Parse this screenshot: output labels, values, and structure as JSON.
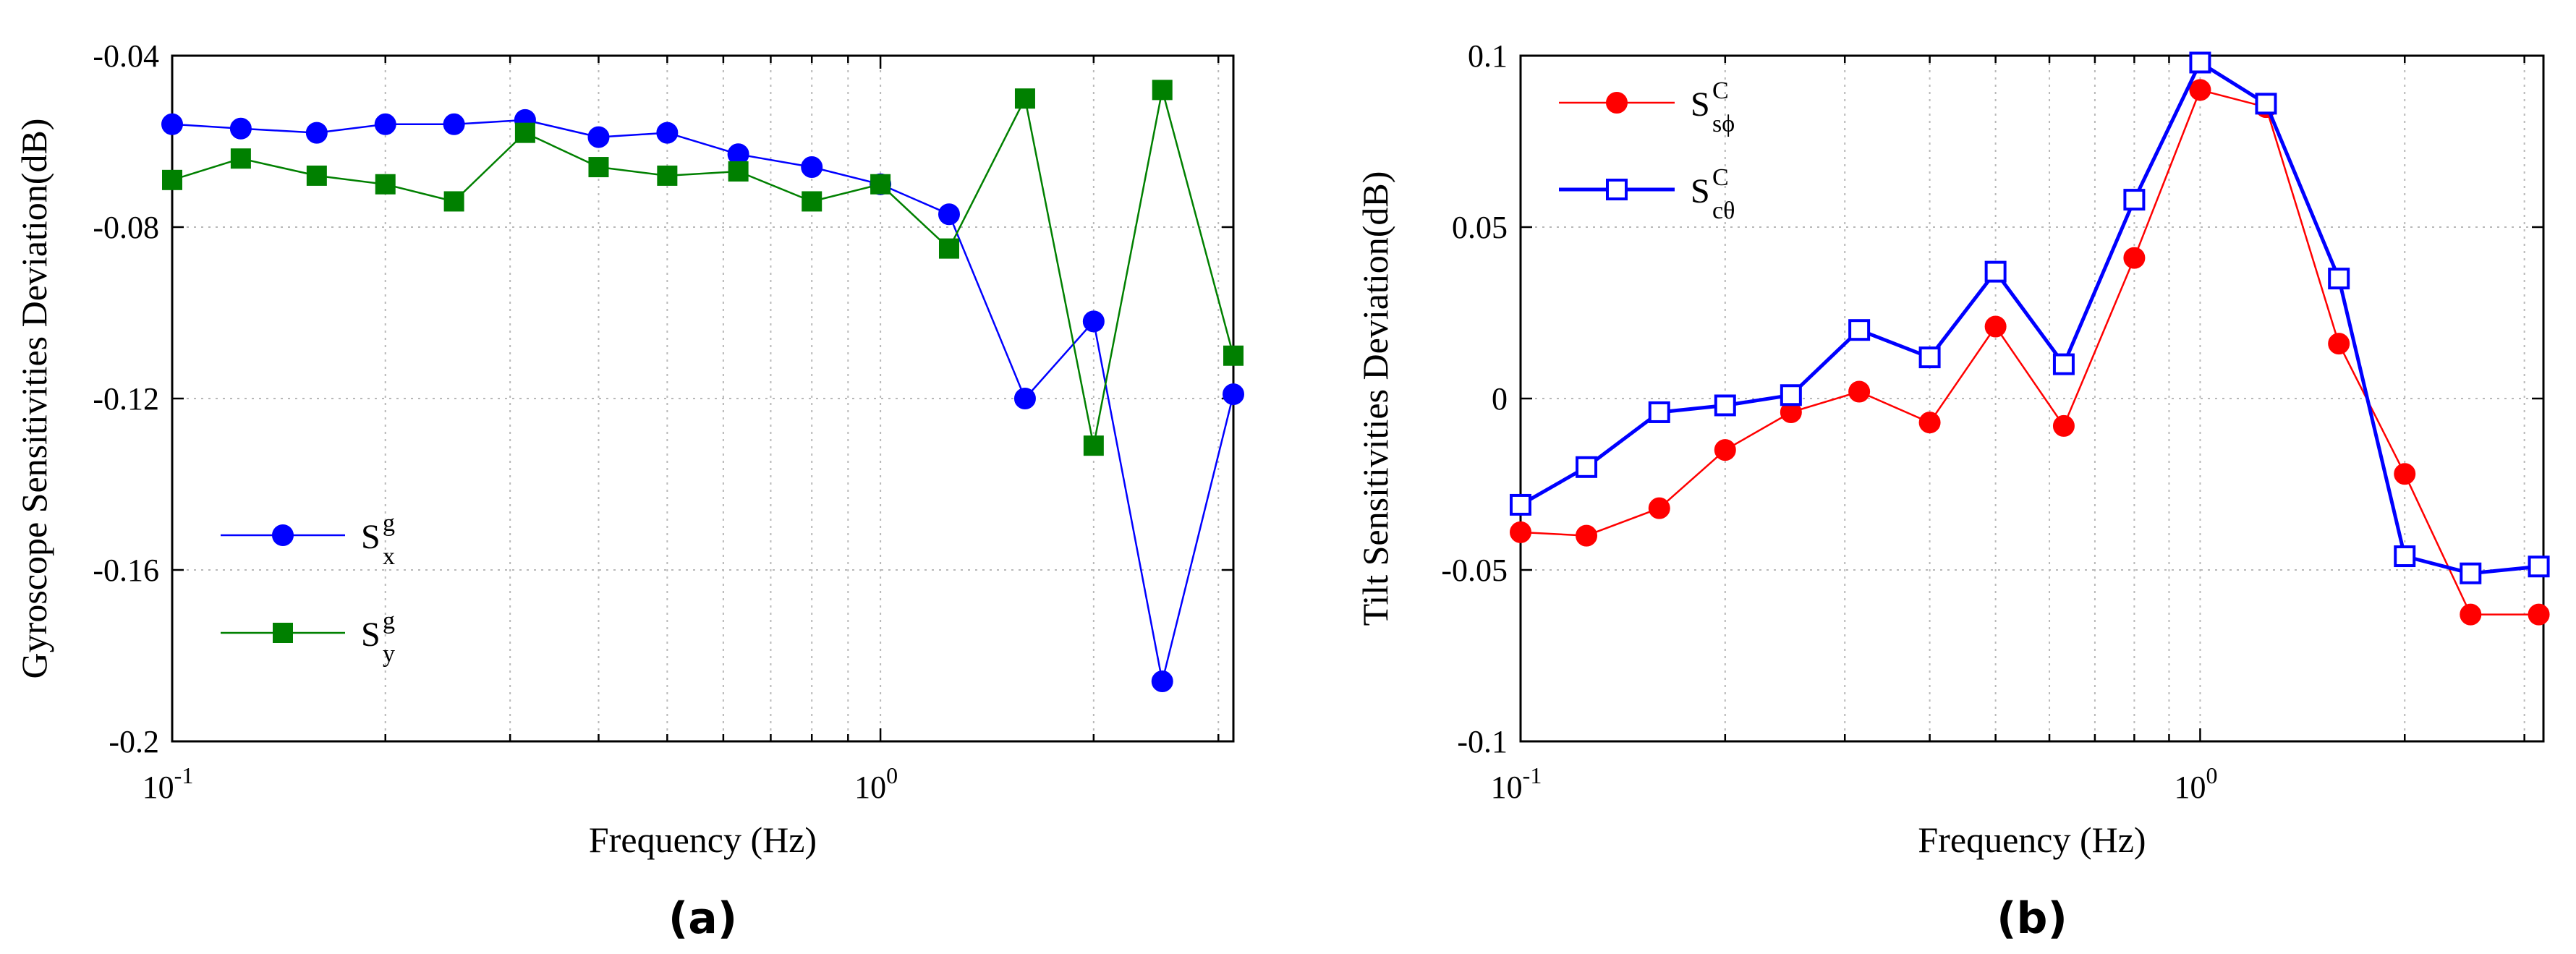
{
  "chart_data": [
    {
      "type": "line",
      "id": "a",
      "panel_label": "(a)",
      "xscale": "log",
      "xlim": [
        0.1,
        3.15
      ],
      "ylim": [
        -0.2,
        -0.04
      ],
      "xlabel": "Frequency (Hz)",
      "ylabel": "Gyroscope Sensitivities Deviation(dB)",
      "x_tick_labels": [
        {
          "value": 0.1,
          "base": "10",
          "exp": "-1"
        },
        {
          "value": 1,
          "base": "10",
          "exp": "0"
        }
      ],
      "y_ticks": [
        -0.2,
        -0.16,
        -0.12,
        -0.08,
        -0.04
      ],
      "y_tick_labels": [
        "-0.2",
        "-0.16",
        "-0.12",
        "-0.08",
        "-0.04"
      ],
      "grid": true,
      "legend_position": "bottom-left",
      "x": [
        0.1,
        0.125,
        0.16,
        0.2,
        0.25,
        0.315,
        0.4,
        0.5,
        0.63,
        0.8,
        1.0,
        1.25,
        1.6,
        2.0,
        2.5,
        3.15
      ],
      "series": [
        {
          "name": "S_x^g",
          "legend_main": "S",
          "legend_sup": "g",
          "legend_sub": "x",
          "color": "#0000ff",
          "marker": "filled-circle",
          "values": [
            -0.056,
            -0.057,
            -0.058,
            -0.056,
            -0.056,
            -0.055,
            -0.059,
            -0.058,
            -0.063,
            -0.066,
            -0.07,
            -0.077,
            -0.12,
            -0.102,
            -0.186,
            -0.119
          ]
        },
        {
          "name": "S_y^g",
          "legend_main": "S",
          "legend_sup": "g",
          "legend_sub": "y",
          "color": "#008000",
          "marker": "filled-square",
          "values": [
            -0.069,
            -0.064,
            -0.068,
            -0.07,
            -0.074,
            -0.058,
            -0.066,
            -0.068,
            -0.067,
            -0.074,
            -0.07,
            -0.085,
            -0.05,
            -0.131,
            -0.048,
            -0.11
          ]
        }
      ]
    },
    {
      "type": "line",
      "id": "b",
      "panel_label": "(b)",
      "xscale": "log",
      "xlim": [
        0.1,
        3.2
      ],
      "ylim": [
        -0.1,
        0.1
      ],
      "xlabel": "Frequency (Hz)",
      "ylabel": "Tilt Sensitivities Deviation(dB)",
      "x_tick_labels": [
        {
          "value": 0.1,
          "base": "10",
          "exp": "-1"
        },
        {
          "value": 1,
          "base": "10",
          "exp": "0"
        }
      ],
      "y_ticks": [
        -0.1,
        -0.05,
        0,
        0.05,
        0.1
      ],
      "y_tick_labels": [
        "-0.1",
        "-0.05",
        "0",
        "0.05",
        "0.1"
      ],
      "grid": true,
      "legend_position": "top-left",
      "x": [
        0.1,
        0.125,
        0.16,
        0.2,
        0.25,
        0.315,
        0.4,
        0.5,
        0.63,
        0.8,
        1.0,
        1.25,
        1.6,
        2.0,
        2.5,
        3.15
      ],
      "series": [
        {
          "name": "S_sφ^C",
          "legend_main": "S",
          "legend_sup": "C",
          "legend_sub": "sϕ",
          "color": "#ff0000",
          "marker": "filled-circle",
          "values": [
            -0.039,
            -0.04,
            -0.032,
            -0.015,
            -0.004,
            0.002,
            -0.007,
            0.021,
            -0.008,
            0.041,
            0.09,
            0.085,
            0.016,
            -0.022,
            -0.063,
            -0.063
          ]
        },
        {
          "name": "S_cθ^C",
          "legend_main": "S",
          "legend_sup": "C",
          "legend_sub": "cθ",
          "color": "#0000ff",
          "marker": "open-square",
          "values": [
            -0.031,
            -0.02,
            -0.004,
            -0.002,
            0.001,
            0.02,
            0.012,
            0.037,
            0.01,
            0.058,
            0.098,
            0.086,
            0.035,
            -0.046,
            -0.051,
            -0.049
          ]
        }
      ]
    }
  ]
}
